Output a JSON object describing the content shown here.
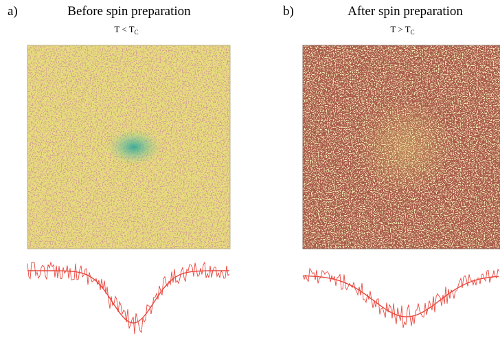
{
  "panels": [
    {
      "label": "a)",
      "title": "Before spin preparation",
      "condition": "T < T",
      "subscript": "C"
    },
    {
      "label": "b)",
      "title": "After spin preparation",
      "condition": "T > T",
      "subscript": "C"
    }
  ]
}
